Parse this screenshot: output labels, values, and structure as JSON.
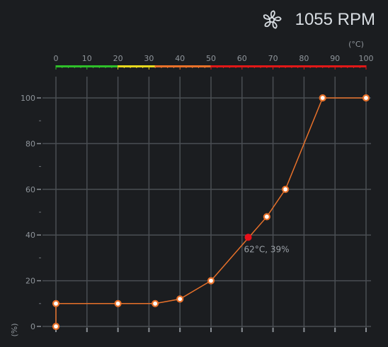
{
  "header": {
    "rpm_text": "1055 RPM",
    "icon": "fan-icon"
  },
  "colors": {
    "background": "#1b1d20",
    "grid": "#4a4e53",
    "curve": "#e8712a",
    "point_fill": "#ffffff",
    "current_point": "#e8101a",
    "zone_green": "#2fbf2a",
    "zone_yellow": "#e6d81e",
    "zone_orange": "#e8712a",
    "zone_red": "#e01818"
  },
  "chart_data": {
    "type": "line",
    "xlabel": "(°C)",
    "ylabel": "(%)",
    "xlim": [
      0,
      100
    ],
    "ylim": [
      0,
      100
    ],
    "x_ticks": [
      0,
      10,
      20,
      30,
      40,
      50,
      60,
      70,
      80,
      90,
      100
    ],
    "y_ticks": [
      0,
      20,
      40,
      60,
      80,
      100
    ],
    "series": [
      {
        "points": [
          [
            0,
            0
          ],
          [
            0,
            10
          ],
          [
            20,
            10
          ],
          [
            32,
            10
          ],
          [
            40,
            12
          ],
          [
            50,
            20
          ],
          [
            68,
            48
          ],
          [
            74,
            60
          ],
          [
            86,
            100
          ],
          [
            100,
            100
          ]
        ]
      }
    ],
    "current_point": {
      "x": 62,
      "y": 39,
      "label": "62°C, 39%"
    },
    "temperature_zones": [
      {
        "from": 0,
        "to": 20,
        "color": "green"
      },
      {
        "from": 20,
        "to": 32,
        "color": "yellow"
      },
      {
        "from": 32,
        "to": 50,
        "color": "orange"
      },
      {
        "from": 50,
        "to": 100,
        "color": "red"
      }
    ]
  }
}
